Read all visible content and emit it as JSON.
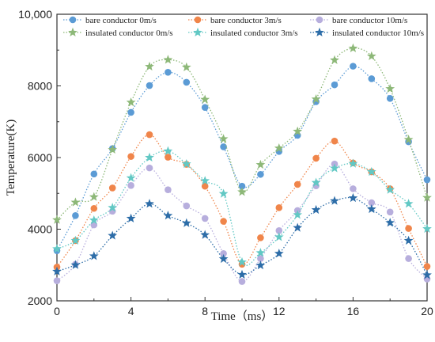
{
  "chart_data": {
    "type": "line",
    "xlabel": "Time（ms）",
    "ylabel": "Temperature(K)",
    "xlim": [
      0,
      20
    ],
    "ylim": [
      2000,
      10000
    ],
    "xticks": [
      0,
      4,
      8,
      12,
      16,
      20
    ],
    "yticks": [
      2000,
      4000,
      6000,
      8000,
      10000
    ],
    "ytick_labels": [
      "2000",
      "4000",
      "6000",
      "8000",
      "10,000"
    ],
    "grid": false,
    "legend_position": "top",
    "x": [
      0,
      1,
      2,
      3,
      4,
      5,
      6,
      7,
      8,
      9,
      10,
      11,
      12,
      13,
      14,
      15,
      16,
      17,
      18,
      19,
      20
    ],
    "series": [
      {
        "name": "bare conductor 0m/s",
        "color": "#5b9bd5",
        "marker": "circle",
        "values": [
          3400,
          4380,
          5540,
          6250,
          7260,
          8010,
          8380,
          8100,
          7400,
          6300,
          5200,
          5530,
          6170,
          6620,
          7560,
          8030,
          8550,
          8200,
          7650,
          6440,
          5380
        ]
      },
      {
        "name": "bare conductor 3m/s",
        "color": "#f0854a",
        "marker": "circle",
        "values": [
          2940,
          3680,
          4580,
          5150,
          6030,
          6640,
          6010,
          5810,
          5200,
          4220,
          3020,
          3760,
          4600,
          5250,
          5980,
          6460,
          5850,
          5600,
          5130,
          4020,
          2960
        ]
      },
      {
        "name": "bare conductor 10m/s",
        "color": "#b7aedd",
        "marker": "circle",
        "values": [
          2560,
          3020,
          4120,
          4500,
          5220,
          5710,
          5100,
          4650,
          4300,
          3320,
          2540,
          3180,
          3960,
          4520,
          5210,
          5820,
          5130,
          4740,
          4480,
          3180,
          2610
        ]
      },
      {
        "name": "insulated conductor 0m/s",
        "color": "#8db878",
        "marker": "star",
        "values": [
          4260,
          4750,
          4900,
          6220,
          7540,
          8540,
          8730,
          8520,
          7620,
          6520,
          5040,
          5800,
          6260,
          6730,
          7630,
          8720,
          9050,
          8830,
          7920,
          6500,
          4880
        ]
      },
      {
        "name": "insulated conductor 3m/s",
        "color": "#62c8c4",
        "marker": "star",
        "values": [
          3450,
          3680,
          4250,
          4600,
          5430,
          6000,
          6180,
          5820,
          5350,
          4990,
          3080,
          3340,
          3780,
          4400,
          5300,
          5700,
          5830,
          5600,
          5100,
          4710,
          4010
        ]
      },
      {
        "name": "insulated conductor 10m/s",
        "color": "#2d6da8",
        "marker": "star",
        "values": [
          2820,
          3000,
          3250,
          3820,
          4300,
          4710,
          4380,
          4170,
          3840,
          3170,
          2730,
          2990,
          3320,
          4040,
          4540,
          4790,
          4870,
          4560,
          4180,
          3680,
          2720
        ]
      }
    ]
  }
}
